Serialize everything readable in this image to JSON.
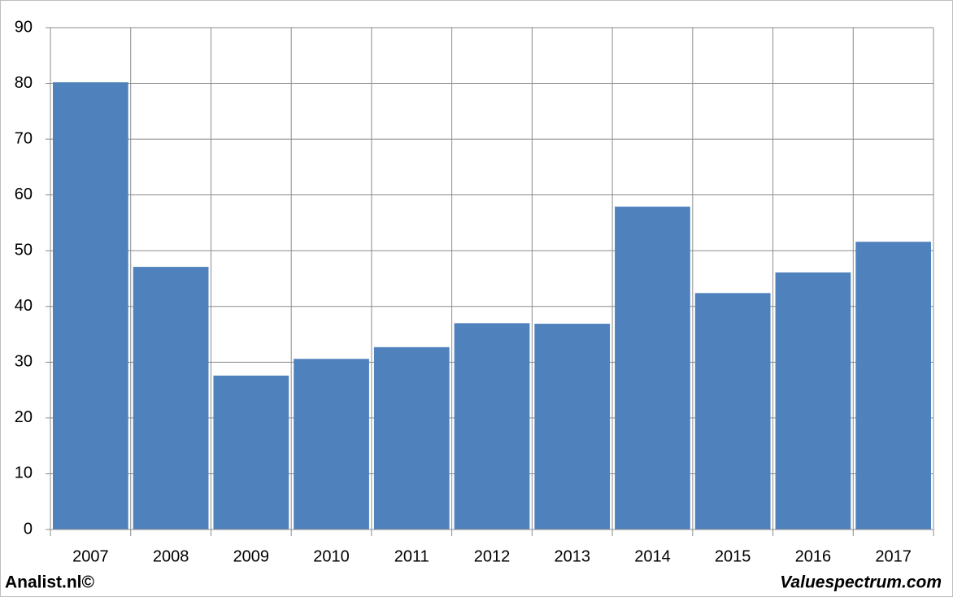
{
  "chart_data": {
    "type": "bar",
    "categories": [
      "2007",
      "2008",
      "2009",
      "2010",
      "2011",
      "2012",
      "2013",
      "2014",
      "2015",
      "2016",
      "2017"
    ],
    "values": [
      80.2,
      47.1,
      27.6,
      30.6,
      32.7,
      37.0,
      36.9,
      57.9,
      42.4,
      46.1,
      51.6
    ],
    "color": "#4f81bd",
    "ylim": [
      0,
      90
    ],
    "yticks": [
      0,
      10,
      20,
      30,
      40,
      50,
      60,
      70,
      80,
      90
    ],
    "grid": true
  },
  "footer": {
    "left": "Analist.nl©",
    "right": "Valuespectrum.com"
  }
}
